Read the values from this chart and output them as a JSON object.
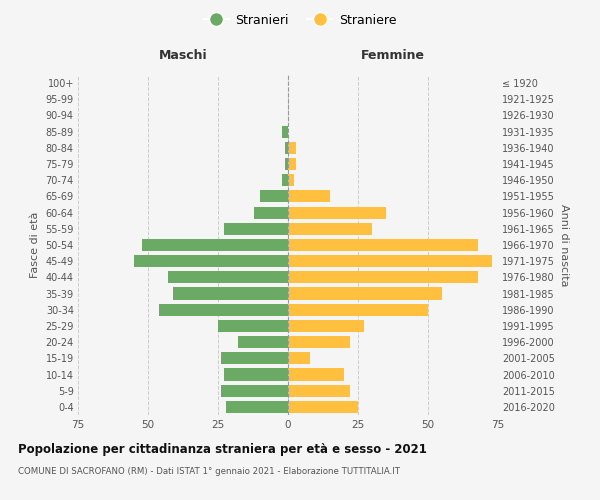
{
  "age_groups": [
    "0-4",
    "5-9",
    "10-14",
    "15-19",
    "20-24",
    "25-29",
    "30-34",
    "35-39",
    "40-44",
    "45-49",
    "50-54",
    "55-59",
    "60-64",
    "65-69",
    "70-74",
    "75-79",
    "80-84",
    "85-89",
    "90-94",
    "95-99",
    "100+"
  ],
  "birth_years": [
    "2016-2020",
    "2011-2015",
    "2006-2010",
    "2001-2005",
    "1996-2000",
    "1991-1995",
    "1986-1990",
    "1981-1985",
    "1976-1980",
    "1971-1975",
    "1966-1970",
    "1961-1965",
    "1956-1960",
    "1951-1955",
    "1946-1950",
    "1941-1945",
    "1936-1940",
    "1931-1935",
    "1926-1930",
    "1921-1925",
    "≤ 1920"
  ],
  "males": [
    22,
    24,
    23,
    24,
    18,
    25,
    46,
    41,
    43,
    55,
    52,
    23,
    12,
    10,
    2,
    1,
    1,
    2,
    0,
    0,
    0
  ],
  "females": [
    25,
    22,
    20,
    8,
    22,
    27,
    50,
    55,
    68,
    73,
    68,
    30,
    35,
    15,
    2,
    3,
    3,
    0,
    0,
    0,
    0
  ],
  "male_color": "#6aaa64",
  "female_color": "#ffc040",
  "background_color": "#f5f5f5",
  "grid_color": "#cccccc",
  "title": "Popolazione per cittadinanza straniera per età e sesso - 2021",
  "subtitle": "COMUNE DI SACROFANO (RM) - Dati ISTAT 1° gennaio 2021 - Elaborazione TUTTITALIA.IT",
  "left_label": "Maschi",
  "right_label": "Femmine",
  "y_left_label": "Fasce di età",
  "y_right_label": "Anni di nascita",
  "legend_male": "Stranieri",
  "legend_female": "Straniere",
  "xlim": 75,
  "bar_height": 0.75
}
